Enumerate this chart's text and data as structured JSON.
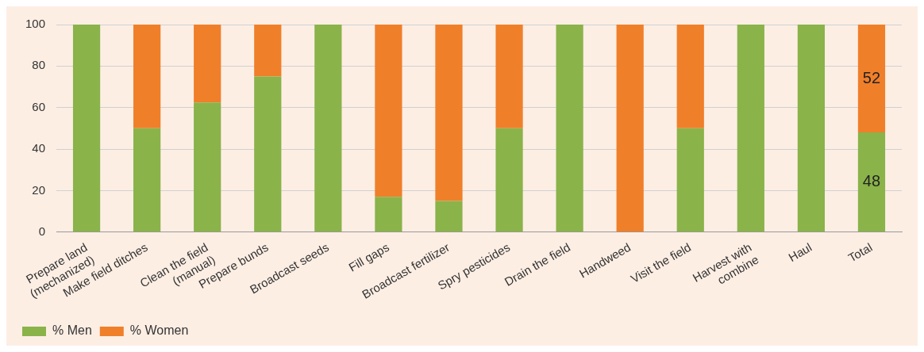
{
  "chart_data": {
    "type": "bar",
    "stacked": true,
    "categories": [
      "Prepare land\n(mechanized)",
      "Make field ditches",
      "Clean the field\n(manual)",
      "Prepare bunds",
      "Broadcast seeds",
      "Fill gaps",
      "Broadcast fertilizer",
      "Spry pesticides",
      "Drain the field",
      "Handweed",
      "Visit the field",
      "Harvest with\ncombine",
      "Haul",
      "Total"
    ],
    "series": [
      {
        "name": "% Men",
        "color": "#8ab34a",
        "values": [
          100,
          50,
          62.5,
          75,
          100,
          17,
          15,
          50,
          100,
          0,
          50,
          100,
          100,
          48
        ],
        "value_labels": [
          null,
          null,
          null,
          null,
          null,
          null,
          null,
          null,
          null,
          null,
          null,
          null,
          null,
          "48"
        ]
      },
      {
        "name": "% Women",
        "color": "#f07f2a",
        "values": [
          0,
          50,
          37.5,
          25,
          0,
          83,
          85,
          50,
          0,
          100,
          50,
          0,
          0,
          52
        ],
        "value_labels": [
          null,
          null,
          null,
          null,
          null,
          null,
          null,
          null,
          null,
          null,
          null,
          null,
          null,
          "52"
        ]
      }
    ],
    "ylim": [
      0,
      100
    ],
    "yticks": [
      0,
      20,
      40,
      60,
      80,
      100
    ],
    "grid": "y",
    "legend": "bottom left"
  }
}
